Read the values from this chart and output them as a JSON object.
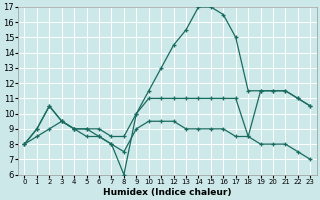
{
  "xlabel": "Humidex (Indice chaleur)",
  "bg_color": "#cce8e8",
  "grid_color": "#b0d0d0",
  "line_color": "#1a6b60",
  "xlim": [
    -0.5,
    23.5
  ],
  "ylim": [
    6,
    17
  ],
  "xtick_labels": [
    "0",
    "1",
    "2",
    "3",
    "4",
    "5",
    "6",
    "7",
    "8",
    "9",
    "10",
    "11",
    "12",
    "13",
    "14",
    "15",
    "16",
    "17",
    "18",
    "19",
    "20",
    "21",
    "22",
    "23"
  ],
  "yticks": [
    6,
    7,
    8,
    9,
    10,
    11,
    12,
    13,
    14,
    15,
    16,
    17
  ],
  "series": [
    [
      8.0,
      9.0,
      10.5,
      9.5,
      9.0,
      9.0,
      8.5,
      8.0,
      6.0,
      10.0,
      11.5,
      13.0,
      14.5,
      15.5,
      17.0,
      17.0,
      16.5,
      15.0,
      11.5,
      11.5,
      11.5,
      11.5,
      11.0,
      10.5
    ],
    [
      8.0,
      9.0,
      10.5,
      9.5,
      9.0,
      9.0,
      9.0,
      8.5,
      8.5,
      10.0,
      11.0,
      11.0,
      11.0,
      11.0,
      11.0,
      11.0,
      11.0,
      11.0,
      8.5,
      11.5,
      11.5,
      11.5,
      11.0,
      10.5
    ],
    [
      8.0,
      8.5,
      9.0,
      9.5,
      9.0,
      8.5,
      8.5,
      8.0,
      7.5,
      9.0,
      9.5,
      9.5,
      9.5,
      9.0,
      9.0,
      9.0,
      9.0,
      8.5,
      8.5,
      8.0,
      8.0,
      8.0,
      7.5,
      7.0
    ]
  ]
}
